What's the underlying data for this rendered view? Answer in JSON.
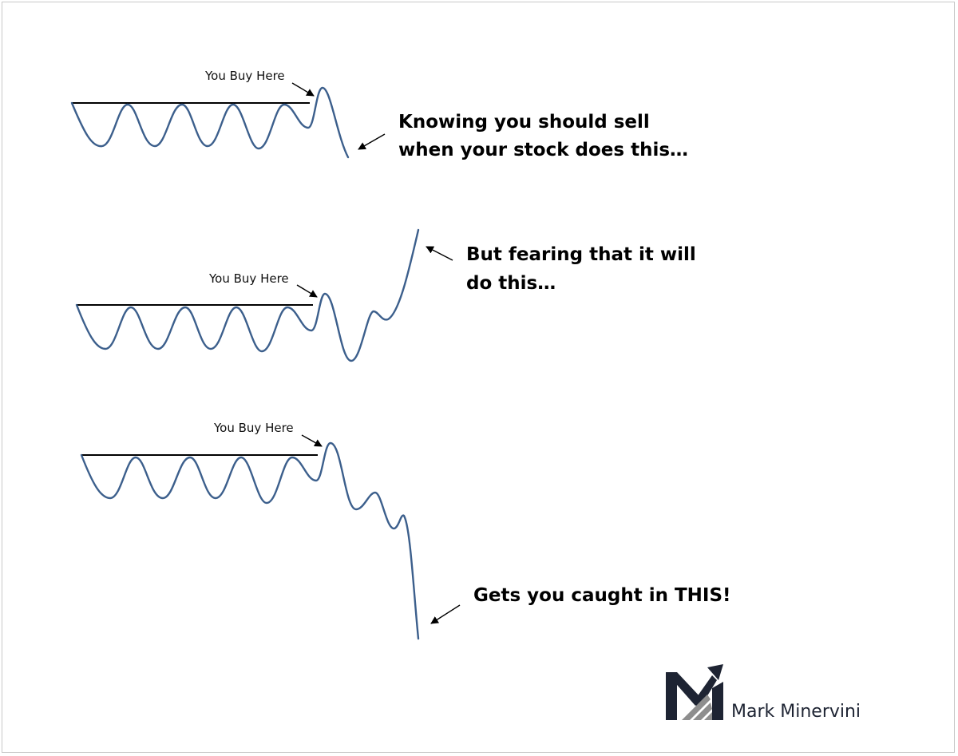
{
  "colors": {
    "wave": "#3c5f8c",
    "line": "#000000",
    "logo_dark": "#1e2433",
    "logo_gray": "#8e8e8e"
  },
  "panels": [
    {
      "buy_label": "You Buy Here",
      "caption_lines": [
        "Knowing you should sell",
        "when your stock does this…"
      ]
    },
    {
      "buy_label": "You Buy Here",
      "caption_lines": [
        "But fearing that it will",
        "do this…"
      ]
    },
    {
      "buy_label": "You Buy Here",
      "caption_lines": [
        "Gets you caught in THIS!"
      ]
    }
  ],
  "brand": {
    "name": "Mark Minervini",
    "logo_icon": "mm-logo-icon"
  }
}
